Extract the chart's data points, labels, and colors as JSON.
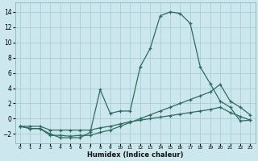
{
  "xlabel": "Humidex (Indice chaleur)",
  "bg_color": "#cce8ee",
  "grid_color": "#aacdd6",
  "line_color": "#2e6b5e",
  "xlim": [
    -0.5,
    23.5
  ],
  "ylim": [
    -3.2,
    15.2
  ],
  "xticks": [
    0,
    1,
    2,
    3,
    4,
    5,
    6,
    7,
    8,
    9,
    10,
    11,
    12,
    13,
    14,
    15,
    16,
    17,
    18,
    19,
    20,
    21,
    22,
    23
  ],
  "yticks": [
    -2,
    0,
    2,
    4,
    6,
    8,
    10,
    12,
    14
  ],
  "line1_x": [
    0,
    1,
    2,
    3,
    4,
    5,
    6,
    7,
    8,
    9,
    10,
    11,
    12,
    13,
    14,
    15,
    16,
    17,
    18,
    19,
    20,
    21,
    22,
    23
  ],
  "line1_y": [
    -1.0,
    -1.3,
    -1.3,
    -2.0,
    -2.5,
    -2.5,
    -2.5,
    -1.8,
    3.8,
    0.7,
    1.0,
    1.0,
    6.8,
    9.2,
    13.5,
    14.0,
    13.8,
    12.5,
    6.8,
    4.6,
    2.3,
    1.5,
    -0.3,
    -0.2
  ],
  "line2_x": [
    0,
    1,
    2,
    3,
    4,
    5,
    6,
    7,
    8,
    9,
    10,
    11,
    12,
    13,
    14,
    15,
    16,
    17,
    18,
    19,
    20,
    21,
    22,
    23
  ],
  "line2_y": [
    -1.0,
    -1.3,
    -1.3,
    -2.2,
    -2.2,
    -2.3,
    -2.2,
    -2.2,
    -1.8,
    -1.5,
    -1.0,
    -0.5,
    0.0,
    0.5,
    1.0,
    1.5,
    2.0,
    2.5,
    3.0,
    3.5,
    4.5,
    2.3,
    1.5,
    0.5
  ],
  "line3_x": [
    0,
    1,
    2,
    3,
    4,
    5,
    6,
    7,
    8,
    9,
    10,
    11,
    12,
    13,
    14,
    15,
    16,
    17,
    18,
    19,
    20,
    21,
    22,
    23
  ],
  "line3_y": [
    -1.0,
    -1.0,
    -1.0,
    -1.5,
    -1.5,
    -1.5,
    -1.5,
    -1.5,
    -1.2,
    -1.0,
    -0.7,
    -0.4,
    -0.2,
    0.0,
    0.2,
    0.4,
    0.6,
    0.8,
    1.0,
    1.2,
    1.5,
    0.8,
    0.3,
    -0.2
  ]
}
